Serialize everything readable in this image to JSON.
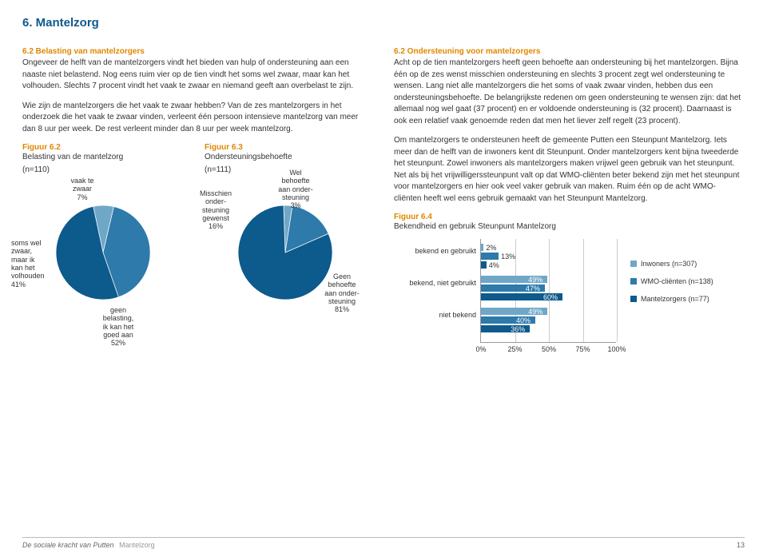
{
  "page_title": "6. Mantelzorg",
  "left": {
    "heading": "6.2 Belasting van mantelzorgers",
    "para1": "Ongeveer de helft van de mantelzorgers vindt het bieden van hulp of ondersteuning aan een naaste niet belastend. Nog eens ruim vier op de tien vindt het soms wel zwaar, maar kan het volhouden. Slechts 7 procent vindt het vaak te zwaar en niemand geeft aan overbelast te zijn.",
    "para2": "Wie zijn de mantelzorgers die het vaak te zwaar hebben? Van de zes mantelzorgers in het onderzoek die het vaak te zwaar vinden, verleent één persoon intensieve mantelzorg van meer dan 8 uur per week. De rest verleent minder dan 8 uur per week mantelzorg."
  },
  "right": {
    "heading": "6.2 Ondersteuning voor mantelzorgers",
    "para1": "Acht op de tien mantelzorgers heeft geen behoefte aan ondersteuning bij het mantelzorgen. Bijna één op de zes wenst misschien ondersteuning en slechts 3 procent zegt wel ondersteuning te wensen. Lang niet alle mantelzorgers die het soms of vaak zwaar vinden, hebben dus een ondersteuningsbehoefte. De belangrijkste redenen om geen ondersteuning te wensen zijn: dat het allemaal nog wel gaat (37 procent) en er voldoende ondersteuning is (32 procent). Daarnaast is ook een relatief vaak genoemde reden dat men het liever zelf regelt (23 procent).",
    "para2": "Om mantelzorgers te ondersteunen heeft de gemeente Putten een Steunpunt Mantelzorg. Iets meer dan de helft van de inwoners kent dit Steunpunt. Onder mantelzorgers kent bijna tweederde het steunpunt. Zowel inwoners als mantelzorgers maken vrijwel geen gebruik van het steunpunt. Net als bij het vrijwilligerssteunpunt valt op dat WMO-cliënten beter bekend zijn met het steunpunt voor mantelzorgers en hier ook veel vaker gebruik van maken. Ruim één op de acht WMO-cliënten heeft wel eens gebruik gemaakt van het Steunpunt Mantelzorg."
  },
  "fig62": {
    "title": "Figuur 6.2",
    "sub1": "Belasting van de mantelzorg",
    "sub2": "(n=110)",
    "slices": [
      {
        "label": "vaak te zwaar",
        "pct": 7,
        "color": "#6fa7c7"
      },
      {
        "label": "soms wel zwaar, maar ik kan het volhouden",
        "pct": 41,
        "color": "#2d7aab"
      },
      {
        "label": "geen belasting, ik kan het goed aan",
        "pct": 52,
        "color": "#0d5a8c"
      }
    ],
    "label_vaak": "vaak te\nzwaar\n7%",
    "label_soms": "soms wel\nzwaar,\nmaar ik\nkan het\nvolhouden\n41%",
    "label_geen": "geen\nbelasting,\nik kan het\ngoed aan\n52%"
  },
  "fig63": {
    "title": "Figuur 6.3",
    "sub1": "Ondersteuningsbehoefte",
    "sub2": "(n=111)",
    "slices": [
      {
        "label": "Wel behoefte aan ondersteuning",
        "pct": 3,
        "color": "#6fa7c7"
      },
      {
        "label": "Misschien ondersteuning gewenst",
        "pct": 16,
        "color": "#2d7aab"
      },
      {
        "label": "Geen behoefte aan ondersteuning",
        "pct": 81,
        "color": "#0d5a8c"
      }
    ],
    "label_wel": "Wel\nbehoefte\naan onder-\nsteuning\n3%",
    "label_miss": "Misschien\nonder-\nsteuning\ngewenst\n16%",
    "label_geen": "Geen\nbehoefte\naan onder-\nsteuning\n81%"
  },
  "fig64": {
    "title": "Figuur 6.4",
    "sub": "Bekendheid en gebruik Steunpunt Mantelzorg",
    "categories": [
      "bekend en gebruikt",
      "bekend, niet gebruikt",
      "niet bekend"
    ],
    "series": [
      {
        "name": "Inwoners (n=307)",
        "color": "#6fa7c7",
        "values": [
          2,
          49,
          49
        ]
      },
      {
        "name": "WMO-cliënten (n=138)",
        "color": "#2d7aab",
        "values": [
          13,
          47,
          40
        ]
      },
      {
        "name": "Mantelzorgers (n=77)",
        "color": "#0d5a8c",
        "values": [
          4,
          60,
          36
        ]
      }
    ],
    "xticks": [
      "0%",
      "25%",
      "50%",
      "75%",
      "100%"
    ],
    "xmax": 100
  },
  "footer": {
    "doc": "De sociale kracht van Putten",
    "section": "Mantelzorg",
    "page": "13"
  }
}
